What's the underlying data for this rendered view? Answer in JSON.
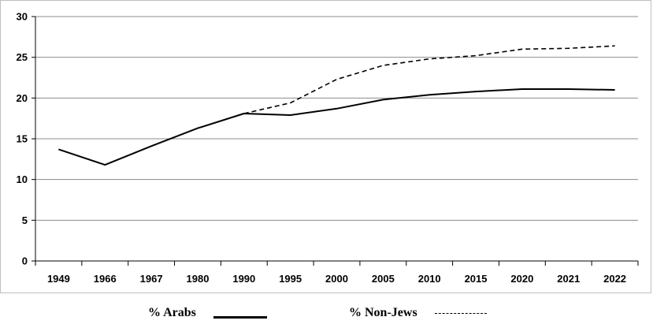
{
  "chart_data": {
    "type": "line",
    "categories": [
      "1949",
      "1966",
      "1967",
      "1980",
      "1990",
      "1995",
      "2000",
      "2005",
      "2010",
      "2015",
      "2020",
      "2021",
      "2022"
    ],
    "series": [
      {
        "name": "% Arabs",
        "style": "solid",
        "values": [
          13.7,
          11.8,
          14.1,
          16.3,
          18.1,
          17.9,
          18.7,
          19.8,
          20.4,
          20.8,
          21.1,
          21.1,
          21.0
        ]
      },
      {
        "name": "% Non-Jews",
        "style": "dashed",
        "values": [
          null,
          null,
          null,
          null,
          18.1,
          19.4,
          22.3,
          24.0,
          24.8,
          25.2,
          26.0,
          26.1,
          26.4
        ]
      }
    ],
    "title": "",
    "xlabel": "",
    "ylabel": "",
    "ylim": [
      0,
      30
    ],
    "yticks": [
      0,
      5,
      10,
      15,
      20,
      25,
      30
    ],
    "grid": true,
    "legend_position": "bottom",
    "colors": {
      "line": "#000000",
      "grid": "#8c8c8c",
      "frame": "#bfbfbf"
    }
  }
}
